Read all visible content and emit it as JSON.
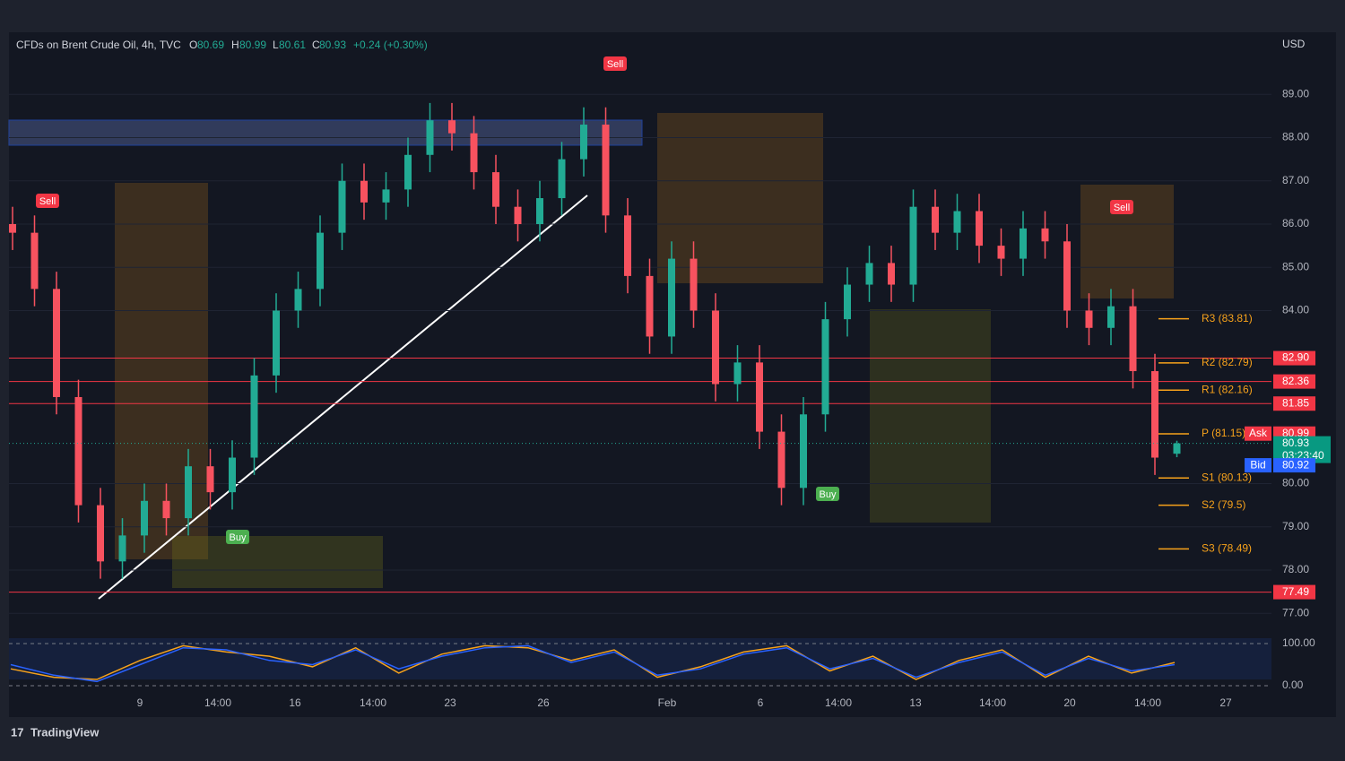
{
  "chart_data": {
    "type": "candlestick",
    "header": {
      "symbol": "CFDs on Brent Crude Oil, 4h, TVC",
      "o": "O",
      "o_val": "80.69",
      "h": "H",
      "h_val": "80.99",
      "l": "L",
      "l_val": "80.61",
      "c": "C",
      "c_val": "80.93",
      "change": "+0.24 (+0.30%)"
    },
    "currency": "USD",
    "up_color": "#22ab94",
    "down_color": "#f7525f",
    "ylim": [
      76.3,
      90.0
    ],
    "yticks": [
      {
        "value": 77,
        "label": "77.00"
      },
      {
        "value": 78,
        "label": "78.00"
      },
      {
        "value": 79,
        "label": "79.00"
      },
      {
        "value": 80,
        "label": "80.00"
      },
      {
        "value": 84,
        "label": "84.00"
      },
      {
        "value": 85,
        "label": "85.00"
      },
      {
        "value": 86,
        "label": "86.00"
      },
      {
        "value": 87,
        "label": "87.00"
      },
      {
        "value": 88,
        "label": "88.00"
      },
      {
        "value": 89,
        "label": "89.00"
      }
    ],
    "x_labels": [
      "9",
      "14:00",
      "16",
      "14:00",
      "23",
      "26",
      "Feb",
      "6",
      "14:00",
      "13",
      "14:00",
      "20",
      "14:00",
      "27"
    ],
    "ohlc": [
      [
        86.0,
        86.4,
        85.4,
        85.8
      ],
      [
        85.8,
        86.2,
        84.1,
        84.5
      ],
      [
        84.5,
        84.9,
        81.6,
        82.0
      ],
      [
        82.0,
        82.4,
        79.1,
        79.5
      ],
      [
        79.5,
        79.9,
        77.8,
        78.2
      ],
      [
        78.2,
        79.2,
        77.8,
        78.8
      ],
      [
        78.8,
        80.0,
        78.4,
        79.6
      ],
      [
        79.6,
        80.0,
        78.8,
        79.2
      ],
      [
        79.2,
        80.8,
        78.8,
        80.4
      ],
      [
        80.4,
        80.8,
        79.4,
        79.8
      ],
      [
        79.8,
        81.0,
        79.4,
        80.6
      ],
      [
        80.6,
        82.9,
        80.2,
        82.5
      ],
      [
        82.5,
        84.4,
        82.1,
        84.0
      ],
      [
        84.0,
        84.9,
        83.6,
        84.5
      ],
      [
        84.5,
        86.2,
        84.1,
        85.8
      ],
      [
        85.8,
        87.4,
        85.4,
        87.0
      ],
      [
        87.0,
        87.4,
        86.1,
        86.5
      ],
      [
        86.5,
        87.2,
        86.1,
        86.8
      ],
      [
        86.8,
        88.0,
        86.4,
        87.6
      ],
      [
        87.6,
        88.8,
        87.2,
        88.4
      ],
      [
        88.4,
        88.8,
        87.7,
        88.1
      ],
      [
        88.1,
        88.5,
        86.8,
        87.2
      ],
      [
        87.2,
        87.6,
        86.0,
        86.4
      ],
      [
        86.4,
        86.8,
        85.6,
        86.0
      ],
      [
        86.0,
        87.0,
        85.6,
        86.6
      ],
      [
        86.6,
        87.9,
        86.2,
        87.5
      ],
      [
        87.5,
        88.7,
        87.1,
        88.3
      ],
      [
        88.3,
        88.7,
        85.8,
        86.2
      ],
      [
        86.2,
        86.6,
        84.4,
        84.8
      ],
      [
        84.8,
        85.2,
        83.0,
        83.4
      ],
      [
        83.4,
        85.6,
        83.0,
        85.2
      ],
      [
        85.2,
        85.6,
        83.6,
        84.0
      ],
      [
        84.0,
        84.4,
        81.9,
        82.3
      ],
      [
        82.3,
        83.2,
        81.9,
        82.8
      ],
      [
        82.8,
        83.2,
        80.8,
        81.2
      ],
      [
        81.2,
        81.6,
        79.5,
        79.9
      ],
      [
        79.9,
        82.0,
        79.5,
        81.6
      ],
      [
        81.6,
        84.2,
        81.2,
        83.8
      ],
      [
        83.8,
        85.0,
        83.4,
        84.6
      ],
      [
        84.6,
        85.5,
        84.2,
        85.1
      ],
      [
        85.1,
        85.5,
        84.2,
        84.6
      ],
      [
        84.6,
        86.8,
        84.2,
        86.4
      ],
      [
        86.4,
        86.8,
        85.4,
        85.8
      ],
      [
        85.8,
        86.7,
        85.4,
        86.3
      ],
      [
        86.3,
        86.7,
        85.1,
        85.5
      ],
      [
        85.5,
        85.9,
        84.8,
        85.2
      ],
      [
        85.2,
        86.3,
        84.8,
        85.9
      ],
      [
        85.9,
        86.3,
        85.2,
        85.6
      ],
      [
        85.6,
        86.0,
        83.6,
        84.0
      ],
      [
        84.0,
        84.4,
        83.2,
        83.6
      ],
      [
        83.6,
        84.5,
        83.2,
        84.1
      ],
      [
        84.1,
        84.5,
        82.2,
        82.6
      ],
      [
        82.6,
        83.0,
        80.2,
        80.6
      ],
      [
        80.69,
        80.99,
        80.61,
        80.93
      ]
    ],
    "price_lines": [
      {
        "value": 82.9,
        "label": "82.90"
      },
      {
        "value": 82.36,
        "label": "82.36"
      },
      {
        "value": 81.85,
        "label": "81.85"
      },
      {
        "value": 77.49,
        "label": "77.49"
      }
    ],
    "pivots": [
      {
        "name": "R3 (83.81)",
        "value": 83.81
      },
      {
        "name": "R2 (82.79)",
        "value": 82.79
      },
      {
        "name": "R1 (82.16)",
        "value": 82.16
      },
      {
        "name": "P (81.15)",
        "value": 81.15
      },
      {
        "name": "S1 (80.13)",
        "value": 80.13
      },
      {
        "name": "S2 (79.5)",
        "value": 79.5
      },
      {
        "name": "S3 (78.49)",
        "value": 78.49
      }
    ],
    "ask": {
      "name": "Ask",
      "value": 80.99,
      "label": "80.99"
    },
    "last": {
      "value": 80.93,
      "label": "80.93",
      "countdown": "03:23:40"
    },
    "bid": {
      "name": "Bid",
      "value": 80.92,
      "label": "80.92"
    },
    "signals": [
      "Sell",
      "Buy",
      "Sell",
      "Buy",
      "Sell"
    ],
    "oscillator": {
      "ylim": [
        0,
        100
      ],
      "yticks": [
        {
          "value": 100,
          "label": "100.00"
        },
        {
          "value": 0,
          "label": "0.00"
        }
      ],
      "series": [
        {
          "color": "#f7a21b",
          "values": [
            40,
            20,
            15,
            60,
            95,
            80,
            70,
            45,
            90,
            30,
            75,
            95,
            90,
            60,
            85,
            20,
            45,
            80,
            95,
            35,
            70,
            15,
            60,
            85,
            20,
            70,
            30,
            55
          ]
        },
        {
          "color": "#2962ff",
          "values": [
            50,
            25,
            10,
            50,
            90,
            85,
            60,
            50,
            85,
            40,
            70,
            90,
            95,
            55,
            80,
            25,
            40,
            75,
            90,
            40,
            65,
            20,
            55,
            80,
            25,
            65,
            35,
            50
          ]
        }
      ]
    },
    "brand": "TradingView"
  }
}
